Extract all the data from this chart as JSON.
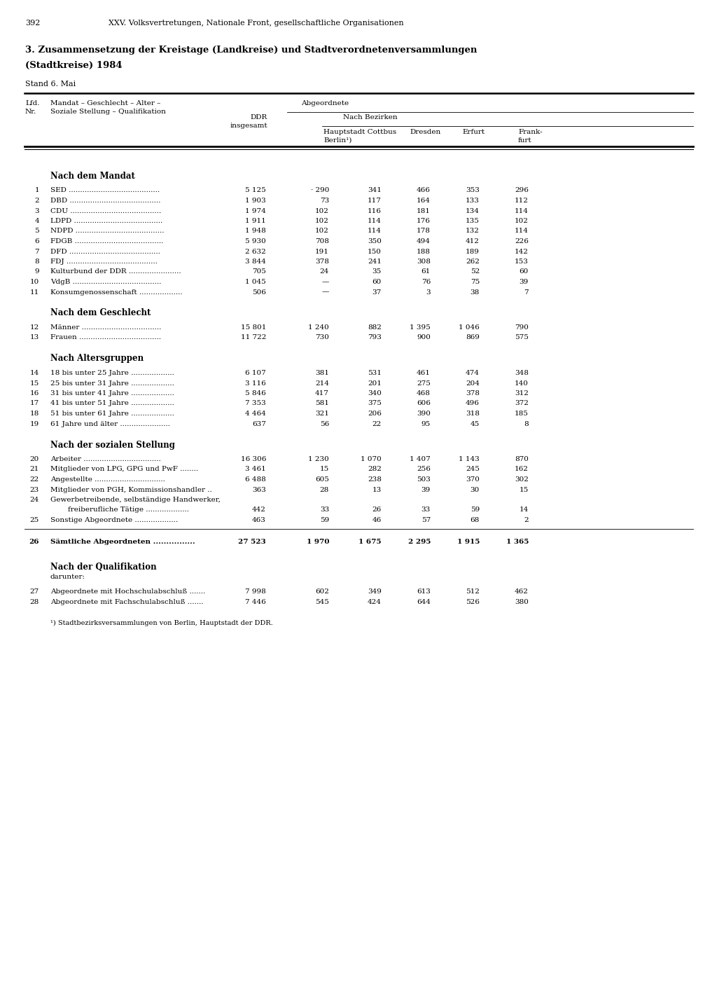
{
  "page_number": "392",
  "header_line": "XXV. Volksvertretungen, Nationale Front, gesellschaftliche Organisationen",
  "title_line1": "3. Zusammensetzung der Kreistage (Landkreise) und Stadtverordnetenversammlungen",
  "title_line2": "(Stadtkreise) 1984",
  "stand": "Stand 6. Mai",
  "col_lfd": "Lfd.",
  "col_nr": "Nr.",
  "col_desc1": "Mandat – Geschlecht – Alter –",
  "col_desc2": "Soziale Stellung – Qualifikation",
  "col_abgeordnete": "Abgeordnete",
  "col_ddr1": "DDR",
  "col_ddr2": "insgesamt",
  "col_nach": "Nach Bezirken",
  "col_berlin1": "Hauptstadt Cottbus",
  "col_berlin2": "Berlin¹)",
  "col_dresden": "Dresden",
  "col_erfurt": "Erfurt",
  "col_frank1": "Frank-",
  "col_frank2": "furt",
  "section1": "Nach dem Mandat",
  "section2": "Nach dem Geschlecht",
  "section3": "Nach Altersgruppen",
  "section4": "Nach der sozialen Stellung",
  "section5": "Nach der Qualifikation",
  "darunter": "darunter:",
  "rows": [
    {
      "nr": "1",
      "label": "SED ........................................",
      "ddr": "5 125",
      "berlin": "· 290",
      "cottbus": "341",
      "dresden": "466",
      "erfurt": "353",
      "frankfurt": "296",
      "section": 1
    },
    {
      "nr": "2",
      "label": "DBD ........................................",
      "ddr": "1 903",
      "berlin": "73",
      "cottbus": "117",
      "dresden": "164",
      "erfurt": "133",
      "frankfurt": "112",
      "section": 1
    },
    {
      "nr": "3",
      "label": "CDU ........................................",
      "ddr": "1 974",
      "berlin": "102",
      "cottbus": "116",
      "dresden": "181",
      "erfurt": "134",
      "frankfurt": "114",
      "section": 1
    },
    {
      "nr": "4",
      "label": "LDPD .......................................",
      "ddr": "1 911",
      "berlin": "102",
      "cottbus": "114",
      "dresden": "176",
      "erfurt": "135",
      "frankfurt": "102",
      "section": 1
    },
    {
      "nr": "5",
      "label": "NDPD .......................................",
      "ddr": "1 948",
      "berlin": "102",
      "cottbus": "114",
      "dresden": "178",
      "erfurt": "132",
      "frankfurt": "114",
      "section": 1
    },
    {
      "nr": "6",
      "label": "FDGB .......................................",
      "ddr": "5 930",
      "berlin": "708",
      "cottbus": "350",
      "dresden": "494",
      "erfurt": "412",
      "frankfurt": "226",
      "section": 1
    },
    {
      "nr": "7",
      "label": "DFD ........................................",
      "ddr": "2 632",
      "berlin": "191",
      "cottbus": "150",
      "dresden": "188",
      "erfurt": "189",
      "frankfurt": "142",
      "section": 1
    },
    {
      "nr": "8",
      "label": "FDJ ........................................",
      "ddr": "3 844",
      "berlin": "378",
      "cottbus": "241",
      "dresden": "308",
      "erfurt": "262",
      "frankfurt": "153",
      "section": 1
    },
    {
      "nr": "9",
      "label": "Kulturbund der DDR .......................",
      "ddr": "705",
      "berlin": "24",
      "cottbus": "35",
      "dresden": "61",
      "erfurt": "52",
      "frankfurt": "60",
      "section": 1
    },
    {
      "nr": "10",
      "label": "VdgB .......................................",
      "ddr": "1 045",
      "berlin": "—",
      "cottbus": "60",
      "dresden": "76",
      "erfurt": "75",
      "frankfurt": "39",
      "section": 1
    },
    {
      "nr": "11",
      "label": "Konsumgenossenschaft ...................",
      "ddr": "506",
      "berlin": "—",
      "cottbus": "37",
      "dresden": "3",
      "erfurt": "38",
      "frankfurt": "7",
      "section": 1
    },
    {
      "nr": "12",
      "label": "Männer ...................................",
      "ddr": "15 801",
      "berlin": "1 240",
      "cottbus": "882",
      "dresden": "1 395",
      "erfurt": "1 046",
      "frankfurt": "790",
      "section": 2
    },
    {
      "nr": "13",
      "label": "Frauen ....................................",
      "ddr": "11 722",
      "berlin": "730",
      "cottbus": "793",
      "dresden": "900",
      "erfurt": "869",
      "frankfurt": "575",
      "section": 2
    },
    {
      "nr": "14",
      "label": "18 bis unter 25 Jahre ...................",
      "ddr": "6 107",
      "berlin": "381",
      "cottbus": "531",
      "dresden": "461",
      "erfurt": "474",
      "frankfurt": "348",
      "section": 3
    },
    {
      "nr": "15",
      "label": "25 bis unter 31 Jahre ...................",
      "ddr": "3 116",
      "berlin": "214",
      "cottbus": "201",
      "dresden": "275",
      "erfurt": "204",
      "frankfurt": "140",
      "section": 3
    },
    {
      "nr": "16",
      "label": "31 bis unter 41 Jahre ...................",
      "ddr": "5 846",
      "berlin": "417",
      "cottbus": "340",
      "dresden": "468",
      "erfurt": "378",
      "frankfurt": "312",
      "section": 3
    },
    {
      "nr": "17",
      "label": "41 bis unter 51 Jahre ...................",
      "ddr": "7 353",
      "berlin": "581",
      "cottbus": "375",
      "dresden": "606",
      "erfurt": "496",
      "frankfurt": "372",
      "section": 3
    },
    {
      "nr": "18",
      "label": "51 bis unter 61 Jahre ...................",
      "ddr": "4 464",
      "berlin": "321",
      "cottbus": "206",
      "dresden": "390",
      "erfurt": "318",
      "frankfurt": "185",
      "section": 3
    },
    {
      "nr": "19",
      "label": "61 Jahre und älter ......................",
      "ddr": "637",
      "berlin": "56",
      "cottbus": "22",
      "dresden": "95",
      "erfurt": "45",
      "frankfurt": "8",
      "section": 3
    },
    {
      "nr": "20",
      "label": "Arbeiter ..................................",
      "ddr": "16 306",
      "berlin": "1 230",
      "cottbus": "1 070",
      "dresden": "1 407",
      "erfurt": "1 143",
      "frankfurt": "870",
      "section": 4
    },
    {
      "nr": "21",
      "label": "Mitglieder von LPG, GPG und PwF ........",
      "ddr": "3 461",
      "berlin": "15",
      "cottbus": "282",
      "dresden": "256",
      "erfurt": "245",
      "frankfurt": "162",
      "section": 4
    },
    {
      "nr": "22",
      "label": "Angestellte ...............................",
      "ddr": "6 488",
      "berlin": "605",
      "cottbus": "238",
      "dresden": "503",
      "erfurt": "370",
      "frankfurt": "302",
      "section": 4
    },
    {
      "nr": "23",
      "label": "Mitglieder von PGH, Kommissionshandler ..",
      "ddr": "363",
      "berlin": "28",
      "cottbus": "13",
      "dresden": "39",
      "erfurt": "30",
      "frankfurt": "15",
      "section": 4
    },
    {
      "nr": "24",
      "label": "Gewerbetreibende, selbständige Handwerker,",
      "ddr": "",
      "berlin": "",
      "cottbus": "",
      "dresden": "",
      "erfurt": "",
      "frankfurt": "",
      "section": 4,
      "nonum": true
    },
    {
      "nr": "",
      "label": "    freiberufliche Tätige ...................",
      "ddr": "442",
      "berlin": "33",
      "cottbus": "26",
      "dresden": "33",
      "erfurt": "59",
      "frankfurt": "14",
      "section": 4
    },
    {
      "nr": "25",
      "label": "Sonstige Abgeordnete ...................",
      "ddr": "463",
      "berlin": "59",
      "cottbus": "46",
      "dresden": "57",
      "erfurt": "68",
      "frankfurt": "2",
      "section": 4
    },
    {
      "nr": "26",
      "label": "Sämtliche Abgeordneten ................",
      "ddr": "27 523",
      "berlin": "1 970",
      "cottbus": "1 675",
      "dresden": "2 295",
      "erfurt": "1 915",
      "frankfurt": "1 365",
      "bold": true,
      "section": 26
    },
    {
      "nr": "27",
      "label": "Abgeordnete mit Hochschulabschluß .......",
      "ddr": "7 998",
      "berlin": "602",
      "cottbus": "349",
      "dresden": "613",
      "erfurt": "512",
      "frankfurt": "462",
      "section": 5
    },
    {
      "nr": "28",
      "label": "Abgeordnete mit Fachschulabschluß .......",
      "ddr": "7 446",
      "berlin": "545",
      "cottbus": "424",
      "dresden": "644",
      "erfurt": "526",
      "frankfurt": "380",
      "section": 5
    }
  ],
  "footnote": "¹) Stadtbezirksversammlungen von Berlin, Hauptstadt der DDR.",
  "bg_color": "#ffffff"
}
